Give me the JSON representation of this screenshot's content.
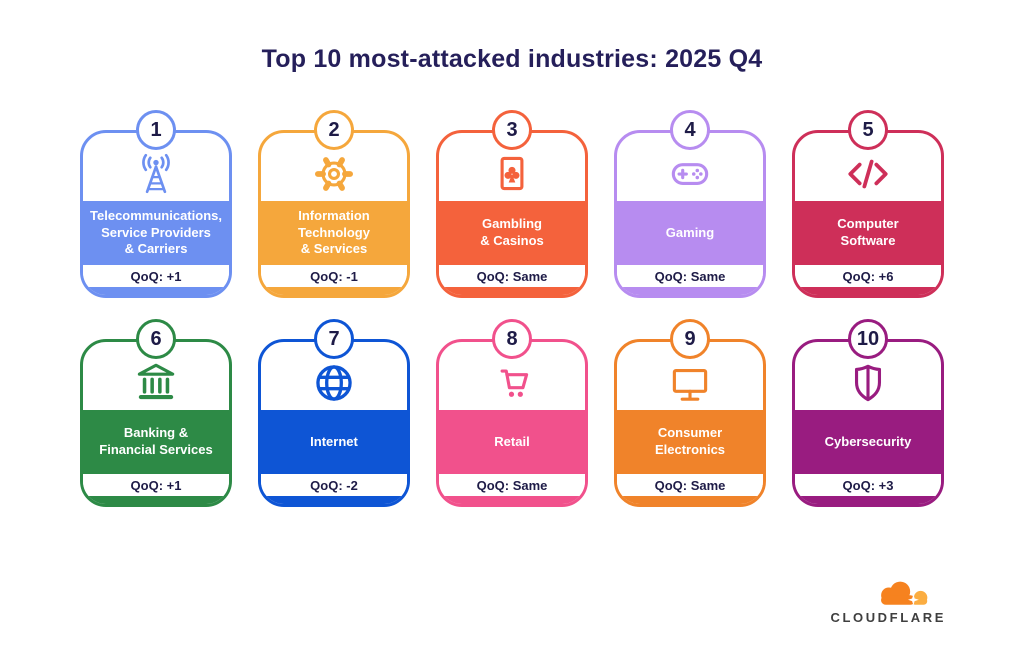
{
  "title": "Top 10 most-attacked industries: 2025 Q4",
  "cards": [
    {
      "rank": "1",
      "label": "Telecommunications, Service Providers & Carriers",
      "label_lines": [
        "Telecommunications,",
        "Service Providers",
        "& Carriers"
      ],
      "qoq": "QoQ: +1",
      "color": "#6d90f1",
      "icon": "antenna-icon"
    },
    {
      "rank": "2",
      "label": "Information Technology & Services",
      "label_lines": [
        "Information",
        "Technology",
        "& Services"
      ],
      "qoq": "QoQ: -1",
      "color": "#f5a73c",
      "icon": "gear-icon"
    },
    {
      "rank": "3",
      "label": "Gambling & Casinos",
      "label_lines": [
        "Gambling",
        "& Casinos"
      ],
      "qoq": "QoQ: Same",
      "color": "#f4623c",
      "icon": "playing-card-icon"
    },
    {
      "rank": "4",
      "label": "Gaming",
      "label_lines": [
        "Gaming"
      ],
      "qoq": "QoQ: Same",
      "color": "#b78cf0",
      "icon": "game-controller-icon"
    },
    {
      "rank": "5",
      "label": "Computer Software",
      "label_lines": [
        "Computer",
        "Software"
      ],
      "qoq": "QoQ: +6",
      "color": "#ce2f59",
      "icon": "code-icon"
    },
    {
      "rank": "6",
      "label": "Banking & Financial Services",
      "label_lines": [
        "Banking &",
        "Financial Services"
      ],
      "qoq": "QoQ: +1",
      "color": "#2d8a46",
      "icon": "bank-icon"
    },
    {
      "rank": "7",
      "label": "Internet",
      "label_lines": [
        "Internet"
      ],
      "qoq": "QoQ: -2",
      "color": "#0e55d5",
      "icon": "globe-icon"
    },
    {
      "rank": "8",
      "label": "Retail",
      "label_lines": [
        "Retail"
      ],
      "qoq": "QoQ: Same",
      "color": "#f1518c",
      "icon": "shopping-cart-icon"
    },
    {
      "rank": "9",
      "label": "Consumer Electronics",
      "label_lines": [
        "Consumer",
        "Electronics"
      ],
      "qoq": "QoQ: Same",
      "color": "#f0832a",
      "icon": "monitor-icon"
    },
    {
      "rank": "10",
      "label": "Cybersecurity",
      "label_lines": [
        "Cybersecurity"
      ],
      "qoq": "QoQ: +3",
      "color": "#991c80",
      "icon": "shield-icon"
    }
  ],
  "logo": {
    "wordmark": "CLOUDFLARE",
    "cloud_color": "#f6821f",
    "sun_color": "#fbad41"
  }
}
